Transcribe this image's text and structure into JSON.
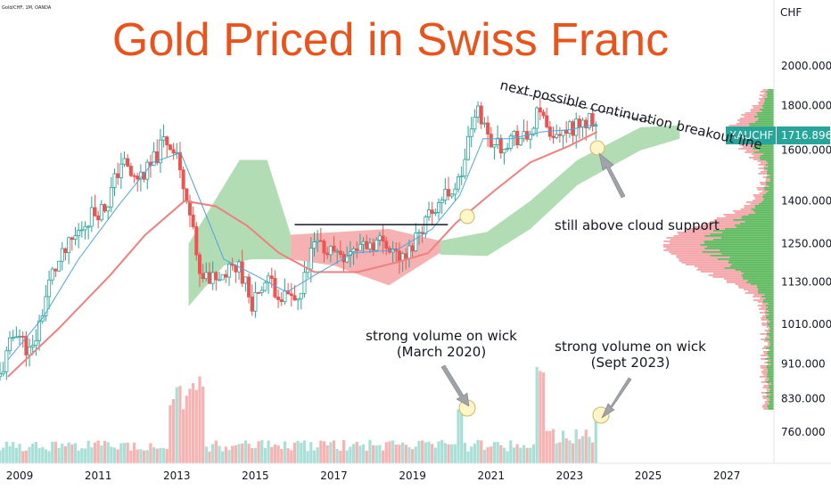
{
  "header": {
    "symbol_text": "Gold/CHF, 1M, OANDA",
    "title": "Gold Priced in Swiss Franc",
    "currency": "CHF"
  },
  "price_label": {
    "ticker": "XAUCHF",
    "price": "1716.896"
  },
  "colors": {
    "up": "#26a69a",
    "down": "#ef5350",
    "cloud_bull": "#a5d6a7",
    "cloud_bear": "#f4a3a6",
    "base_line": "#f08080",
    "conv_line": "#4fa3e0",
    "title": "#e8541c",
    "price_tag": "#26a69a"
  },
  "annotations": {
    "breakout": "next possible continuation breakout line",
    "cloud": "still above cloud support",
    "vol1_line1": "strong volume on wick",
    "vol1_line2": "(March 2020)",
    "vol2_line1": "strong volume on wick",
    "vol2_line2": "(Sept 2023)"
  },
  "chart_data": {
    "type": "candlestick",
    "x_axis_labels": [
      "2009",
      "2011",
      "2013",
      "2015",
      "2017",
      "2019",
      "2021",
      "2023",
      "2025",
      "2027"
    ],
    "y_axis_labels": [
      "2000.000",
      "1800.000",
      "1600.000",
      "1400.000",
      "1250.000",
      "1130.000",
      "1010.000",
      "910.000",
      "830.000",
      "760.000"
    ],
    "y_scale": "log",
    "xlim": [
      2008.5,
      2028.2
    ],
    "ylim": [
      700,
      2380
    ],
    "price_anchors": [
      [
        2008.5,
        880
      ],
      [
        2008.9,
        1000
      ],
      [
        2009.3,
        930
      ],
      [
        2009.8,
        1150
      ],
      [
        2010.3,
        1250
      ],
      [
        2010.8,
        1350
      ],
      [
        2011.2,
        1380
      ],
      [
        2011.6,
        1560
      ],
      [
        2011.9,
        1480
      ],
      [
        2012.3,
        1520
      ],
      [
        2012.7,
        1650
      ],
      [
        2013.0,
        1580
      ],
      [
        2013.3,
        1400
      ],
      [
        2013.5,
        1200
      ],
      [
        2013.8,
        1140
      ],
      [
        2014.2,
        1150
      ],
      [
        2014.6,
        1180
      ],
      [
        2014.9,
        1070
      ],
      [
        2015.3,
        1130
      ],
      [
        2015.8,
        1080
      ],
      [
        2016.1,
        1070
      ],
      [
        2016.5,
        1250
      ],
      [
        2016.9,
        1230
      ],
      [
        2017.3,
        1220
      ],
      [
        2017.8,
        1250
      ],
      [
        2018.3,
        1260
      ],
      [
        2018.8,
        1190
      ],
      [
        2019.1,
        1280
      ],
      [
        2019.5,
        1370
      ],
      [
        2019.9,
        1430
      ],
      [
        2020.2,
        1470
      ],
      [
        2020.5,
        1700
      ],
      [
        2020.7,
        1780
      ],
      [
        2020.9,
        1660
      ],
      [
        2021.2,
        1620
      ],
      [
        2021.6,
        1660
      ],
      [
        2021.9,
        1640
      ],
      [
        2022.2,
        1760
      ],
      [
        2022.4,
        1700
      ],
      [
        2022.7,
        1650
      ],
      [
        2022.9,
        1680
      ],
      [
        2023.1,
        1700
      ],
      [
        2023.4,
        1730
      ],
      [
        2023.7,
        1717
      ]
    ],
    "cloud_bull_top": [
      [
        2013.3,
        1250
      ],
      [
        2014.6,
        1560
      ],
      [
        2015.3,
        1560
      ],
      [
        2015.9,
        1280
      ]
    ],
    "cloud_bull_bottom": [
      [
        2013.3,
        1060
      ],
      [
        2014.2,
        1180
      ],
      [
        2014.9,
        1200
      ],
      [
        2015.9,
        1200
      ]
    ],
    "cloud_bear_top": [
      [
        2015.9,
        1280
      ],
      [
        2018.4,
        1300
      ],
      [
        2019.7,
        1260
      ]
    ],
    "cloud_bear_bottom": [
      [
        2015.9,
        1200
      ],
      [
        2017.0,
        1180
      ],
      [
        2018.4,
        1120
      ],
      [
        2019.7,
        1220
      ]
    ],
    "cloud_bull2_top": [
      [
        2019.7,
        1260
      ],
      [
        2020.9,
        1290
      ],
      [
        2022.0,
        1400
      ],
      [
        2023.2,
        1560
      ],
      [
        2024.8,
        1700
      ],
      [
        2025.8,
        1710
      ]
    ],
    "cloud_bull2_bottom": [
      [
        2019.7,
        1215
      ],
      [
        2020.9,
        1210
      ],
      [
        2022.0,
        1300
      ],
      [
        2023.2,
        1460
      ],
      [
        2024.8,
        1600
      ],
      [
        2025.8,
        1650
      ]
    ],
    "base_line": [
      [
        2008.7,
        880
      ],
      [
        2010.0,
        1000
      ],
      [
        2011.3,
        1150
      ],
      [
        2012.2,
        1280
      ],
      [
        2013.2,
        1400
      ],
      [
        2014.0,
        1380
      ],
      [
        2014.8,
        1310
      ],
      [
        2015.6,
        1220
      ],
      [
        2016.5,
        1160
      ],
      [
        2017.6,
        1160
      ],
      [
        2018.6,
        1190
      ],
      [
        2019.4,
        1220
      ],
      [
        2020.1,
        1320
      ],
      [
        2021.1,
        1440
      ],
      [
        2022.0,
        1550
      ],
      [
        2023.0,
        1620
      ],
      [
        2023.7,
        1680
      ]
    ],
    "conv_line": [
      [
        2008.7,
        920
      ],
      [
        2009.6,
        1030
      ],
      [
        2010.5,
        1200
      ],
      [
        2011.5,
        1380
      ],
      [
        2012.4,
        1550
      ],
      [
        2013.1,
        1590
      ],
      [
        2013.6,
        1400
      ],
      [
        2014.2,
        1200
      ],
      [
        2015.0,
        1150
      ],
      [
        2015.8,
        1100
      ],
      [
        2016.5,
        1150
      ],
      [
        2017.5,
        1220
      ],
      [
        2018.6,
        1230
      ],
      [
        2019.5,
        1300
      ],
      [
        2020.2,
        1420
      ],
      [
        2020.8,
        1650
      ],
      [
        2021.5,
        1650
      ],
      [
        2022.3,
        1680
      ],
      [
        2023.0,
        1690
      ],
      [
        2023.7,
        1715
      ]
    ],
    "support_line": [
      [
        2016.0,
        1315
      ],
      [
        2019.9,
        1315
      ]
    ],
    "breakout_line": [
      [
        2021.5,
        1870
      ],
      [
        2025.2,
        1720
      ]
    ],
    "volume_profile": {
      "peak_price": 1250,
      "scale": "relative"
    }
  }
}
